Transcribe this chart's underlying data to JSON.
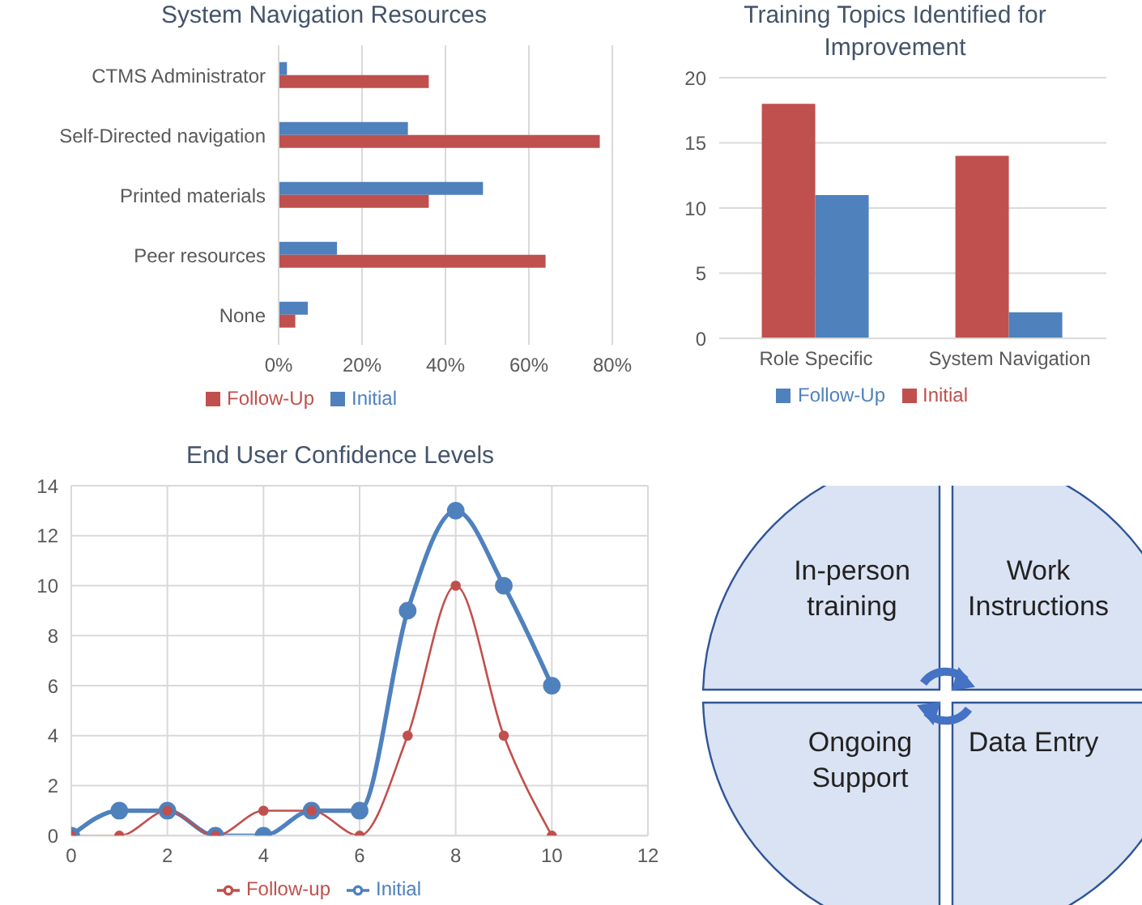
{
  "chart_data": [
    {
      "type": "bar",
      "orientation": "horizontal",
      "title": "System Navigation Resources",
      "categories": [
        "CTMS Administrator",
        "Self-Directed navigation",
        "Printed materials",
        "Peer resources",
        "None"
      ],
      "series": [
        {
          "name": "Initial",
          "color": "#4f81bd",
          "values": [
            2,
            31,
            49,
            14,
            7
          ]
        },
        {
          "name": "Follow-Up",
          "color": "#c0504d",
          "values": [
            36,
            77,
            36,
            64,
            4
          ]
        }
      ],
      "xlim": [
        0,
        80
      ],
      "xticks": [
        {
          "value": 0,
          "label": "0%"
        },
        {
          "value": 20,
          "label": "20%"
        },
        {
          "value": 40,
          "label": "40%"
        },
        {
          "value": 60,
          "label": "60%"
        },
        {
          "value": 80,
          "label": "80%"
        }
      ],
      "grid": "x",
      "legend": "bottom"
    },
    {
      "type": "bar",
      "title": "Training Topics Identified for Improvement",
      "categories": [
        "Role Specific",
        "System Navigation"
      ],
      "series": [
        {
          "name": "Initial",
          "color": "#c0504d",
          "values": [
            18,
            14
          ]
        },
        {
          "name": "Follow-Up",
          "color": "#4f81bd",
          "values": [
            11,
            2
          ]
        }
      ],
      "ylim": [
        0,
        20
      ],
      "yticks": [
        0,
        5,
        10,
        15,
        20
      ],
      "grid": "y",
      "legend": "bottom"
    },
    {
      "type": "line",
      "title": "End User Confidence Levels",
      "x": [
        0,
        1,
        2,
        3,
        4,
        5,
        6,
        7,
        8,
        9,
        10
      ],
      "series": [
        {
          "name": "Initial",
          "color": "#4f81bd",
          "values": [
            0,
            1,
            1,
            0,
            0,
            1,
            1,
            9,
            13,
            10,
            6
          ]
        },
        {
          "name": "Follow-up",
          "color": "#c0504d",
          "values": [
            0,
            0,
            1,
            0,
            1,
            1,
            0,
            4,
            10,
            4,
            0
          ]
        }
      ],
      "xlim": [
        0,
        12
      ],
      "xticks": [
        0,
        2,
        4,
        6,
        8,
        10,
        12
      ],
      "ylim": [
        0,
        14
      ],
      "yticks": [
        0,
        2,
        4,
        6,
        8,
        10,
        12,
        14
      ],
      "grid": true,
      "legend": "bottom",
      "marker": "circle",
      "line_style": "solid"
    },
    {
      "type": "other",
      "annotations": [
        "In-person training",
        "Work Instructions",
        "Ongoing Support",
        "Data Entry"
      ]
    }
  ]
}
